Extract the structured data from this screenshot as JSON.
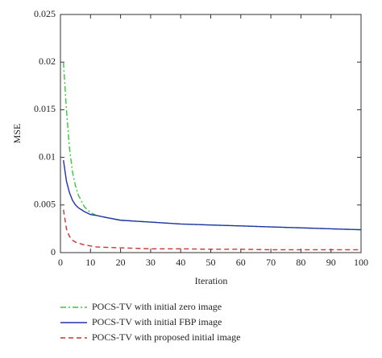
{
  "chart_data": {
    "type": "line",
    "x_label": "Iteration",
    "y_label": "MSE",
    "x": [
      1,
      2,
      3,
      4,
      5,
      6,
      8,
      10,
      12,
      15,
      20,
      25,
      30,
      40,
      50,
      60,
      70,
      80,
      90,
      100
    ],
    "series": [
      {
        "name": "POCS-TV with initial zero image",
        "color": "#33cc33",
        "dash": "dashdot",
        "values": [
          0.02,
          0.015,
          0.011,
          0.0085,
          0.007,
          0.006,
          0.0048,
          0.0042,
          0.0039,
          0.0037,
          0.0034,
          0.0033,
          0.0032,
          0.003,
          0.0029,
          0.0028,
          0.0027,
          0.0026,
          0.0025,
          0.0024
        ]
      },
      {
        "name": "POCS-TV with initial FBP image",
        "color": "#2233aa",
        "dash": "solid",
        "values": [
          0.0097,
          0.0075,
          0.0063,
          0.0055,
          0.005,
          0.0047,
          0.0043,
          0.004,
          0.0039,
          0.0037,
          0.0034,
          0.0033,
          0.0032,
          0.003,
          0.0029,
          0.0028,
          0.0027,
          0.0026,
          0.0025,
          0.0024
        ]
      },
      {
        "name": "POCS-TV with proposed initial image",
        "color": "#cc3333",
        "dash": "dashed",
        "values": [
          0.0045,
          0.0025,
          0.0017,
          0.0013,
          0.0011,
          0.001,
          0.0008,
          0.0007,
          0.0006,
          0.00055,
          0.0005,
          0.00045,
          0.0004,
          0.0004,
          0.00035,
          0.00035,
          0.0003,
          0.0003,
          0.0003,
          0.0003
        ]
      }
    ],
    "xlim": [
      0,
      100
    ],
    "xticks": [
      0,
      10,
      20,
      30,
      40,
      50,
      60,
      70,
      80,
      90,
      100
    ],
    "ylim": [
      0,
      0.025
    ],
    "yticks": [
      0,
      0.005,
      0.01,
      0.015,
      0.02,
      0.025
    ],
    "legend": "below"
  }
}
